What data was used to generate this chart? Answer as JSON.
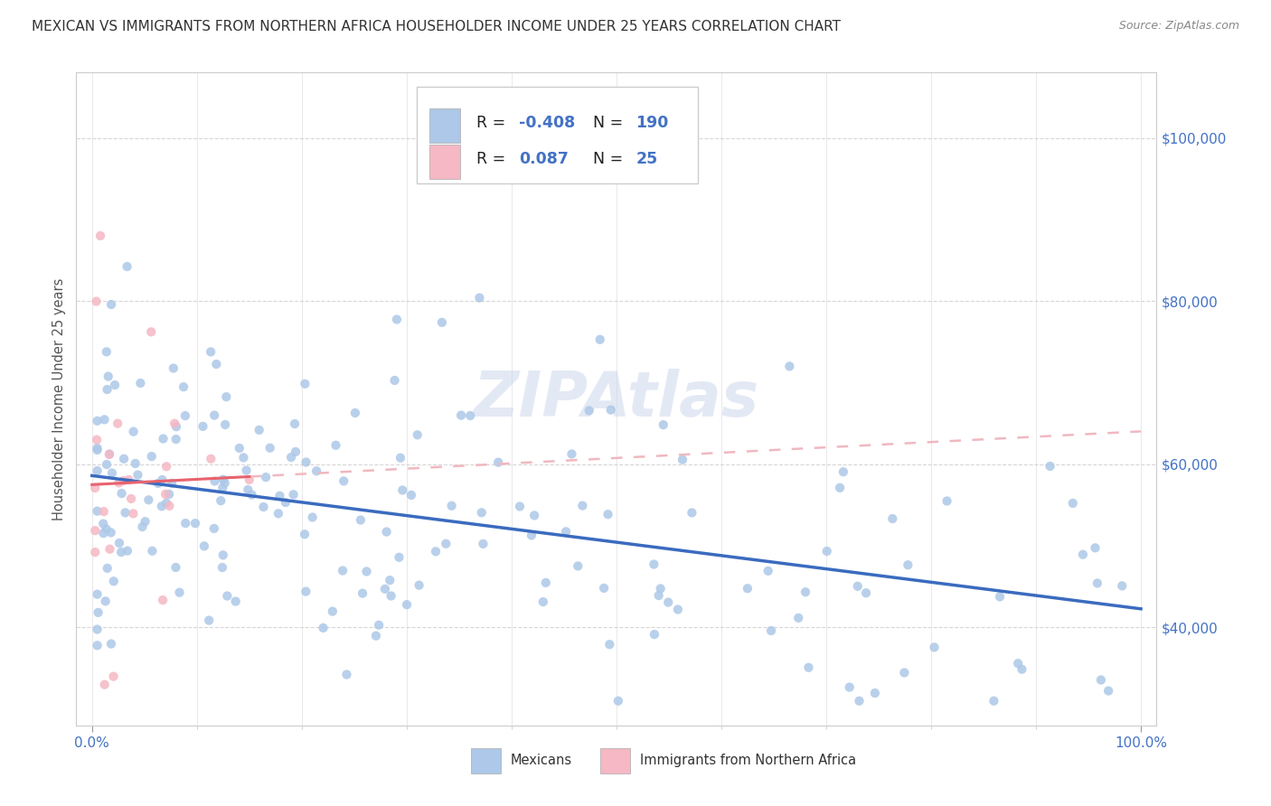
{
  "title": "MEXICAN VS IMMIGRANTS FROM NORTHERN AFRICA HOUSEHOLDER INCOME UNDER 25 YEARS CORRELATION CHART",
  "source": "Source: ZipAtlas.com",
  "ylabel": "Householder Income Under 25 years",
  "watermark": "ZIPAtlas",
  "series1_label": "Mexicans",
  "series2_label": "Immigrants from Northern Africa",
  "series1_color": "#adc8e8",
  "series2_color": "#f5b8c4",
  "trend1_color": "#3a6bbf",
  "trend2_color": "#e8636e",
  "trend2_dash_color": "#f0b8c0",
  "background_color": "#ffffff",
  "grid_color": "#cccccc",
  "axis_label_color": "#4472c4",
  "text_color": "#333333",
  "ylabel_color": "#555555",
  "ylim_min": 28000,
  "ylim_max": 108000,
  "yticks": [
    40000,
    60000,
    80000,
    100000
  ],
  "ytick_labels": [
    "$40,000",
    "$60,000",
    "$80,000",
    "$100,000"
  ],
  "title_fontsize": 11,
  "source_fontsize": 9,
  "tick_fontsize": 11
}
